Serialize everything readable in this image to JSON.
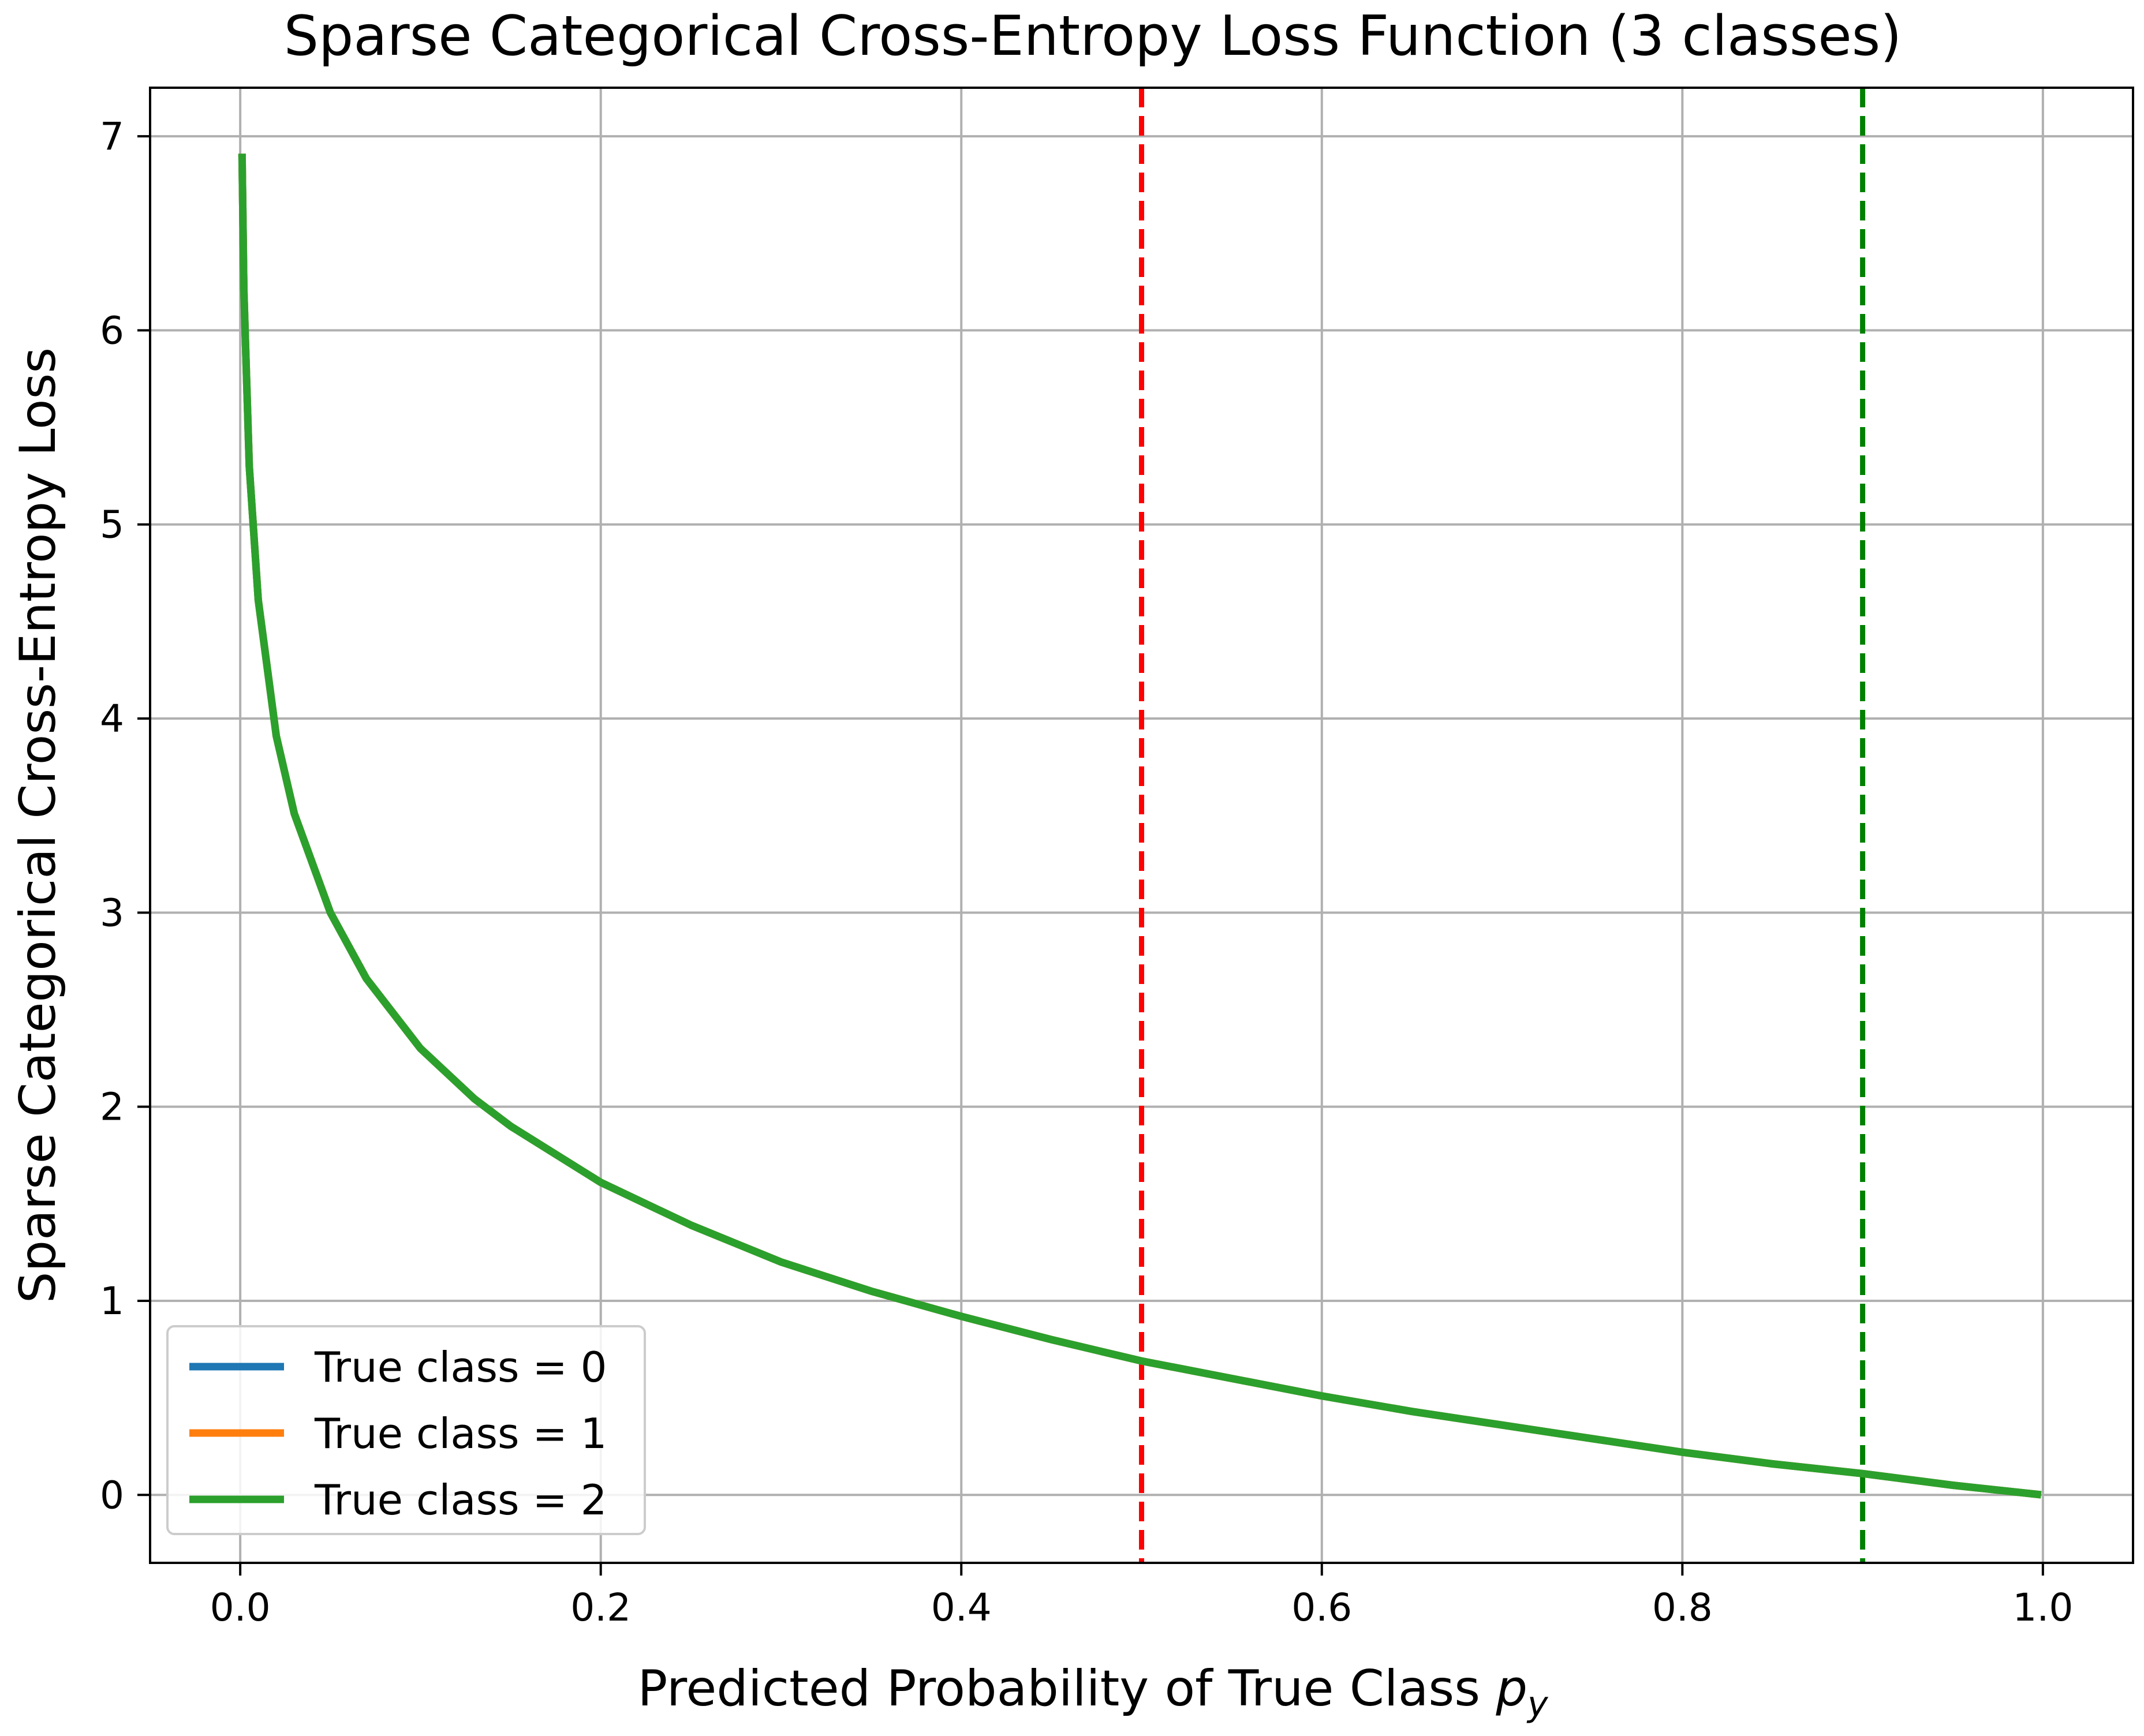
{
  "chart_data": {
    "type": "line",
    "title": "Sparse Categorical Cross-Entropy Loss Function (3 classes)",
    "xlabel": "Predicted Probability of True Class",
    "xlabel_var": "p",
    "xlabel_sub": "y",
    "ylabel": "Sparse Categorical Cross-Entropy Loss",
    "xlim": [
      -0.05,
      1.05
    ],
    "ylim": [
      -0.35,
      7.25
    ],
    "x_ticks": [
      0.0,
      0.2,
      0.4,
      0.6,
      0.8,
      1.0
    ],
    "x_tick_labels": [
      "0.0",
      "0.2",
      "0.4",
      "0.6",
      "0.8",
      "1.0"
    ],
    "y_ticks": [
      0,
      1,
      2,
      3,
      4,
      5,
      6,
      7
    ],
    "y_tick_labels": [
      "0",
      "1",
      "2",
      "3",
      "4",
      "5",
      "6",
      "7"
    ],
    "grid": true,
    "legend_position": "lower-left",
    "series": [
      {
        "name": "True class = 0",
        "color": "#1f77b4",
        "x": [
          0.001,
          0.002,
          0.005,
          0.01,
          0.02,
          0.03,
          0.05,
          0.07,
          0.1,
          0.13,
          0.15,
          0.2,
          0.25,
          0.3,
          0.35,
          0.4,
          0.45,
          0.5,
          0.55,
          0.6,
          0.65,
          0.7,
          0.75,
          0.8,
          0.85,
          0.9,
          0.95,
          0.999
        ],
        "y": [
          6.91,
          6.21,
          5.3,
          4.61,
          3.91,
          3.51,
          3.0,
          2.66,
          2.3,
          2.04,
          1.9,
          1.61,
          1.39,
          1.2,
          1.05,
          0.92,
          0.8,
          0.69,
          0.6,
          0.51,
          0.43,
          0.36,
          0.29,
          0.22,
          0.16,
          0.11,
          0.05,
          0.001
        ]
      },
      {
        "name": "True class = 1",
        "color": "#ff7f0e",
        "x": [
          0.001,
          0.002,
          0.005,
          0.01,
          0.02,
          0.03,
          0.05,
          0.07,
          0.1,
          0.13,
          0.15,
          0.2,
          0.25,
          0.3,
          0.35,
          0.4,
          0.45,
          0.5,
          0.55,
          0.6,
          0.65,
          0.7,
          0.75,
          0.8,
          0.85,
          0.9,
          0.95,
          0.999
        ],
        "y": [
          6.91,
          6.21,
          5.3,
          4.61,
          3.91,
          3.51,
          3.0,
          2.66,
          2.3,
          2.04,
          1.9,
          1.61,
          1.39,
          1.2,
          1.05,
          0.92,
          0.8,
          0.69,
          0.6,
          0.51,
          0.43,
          0.36,
          0.29,
          0.22,
          0.16,
          0.11,
          0.05,
          0.001
        ]
      },
      {
        "name": "True class = 2",
        "color": "#2ca02c",
        "x": [
          0.001,
          0.002,
          0.005,
          0.01,
          0.02,
          0.03,
          0.05,
          0.07,
          0.1,
          0.13,
          0.15,
          0.2,
          0.25,
          0.3,
          0.35,
          0.4,
          0.45,
          0.5,
          0.55,
          0.6,
          0.65,
          0.7,
          0.75,
          0.8,
          0.85,
          0.9,
          0.95,
          0.999
        ],
        "y": [
          6.91,
          6.21,
          5.3,
          4.61,
          3.91,
          3.51,
          3.0,
          2.66,
          2.3,
          2.04,
          1.9,
          1.61,
          1.39,
          1.2,
          1.05,
          0.92,
          0.8,
          0.69,
          0.6,
          0.51,
          0.43,
          0.36,
          0.29,
          0.22,
          0.16,
          0.11,
          0.05,
          0.001
        ]
      }
    ],
    "vlines": [
      {
        "x": 0.5,
        "color": "#ff0000",
        "style": "dashed"
      },
      {
        "x": 0.9,
        "color": "#008000",
        "style": "dashed"
      }
    ]
  }
}
